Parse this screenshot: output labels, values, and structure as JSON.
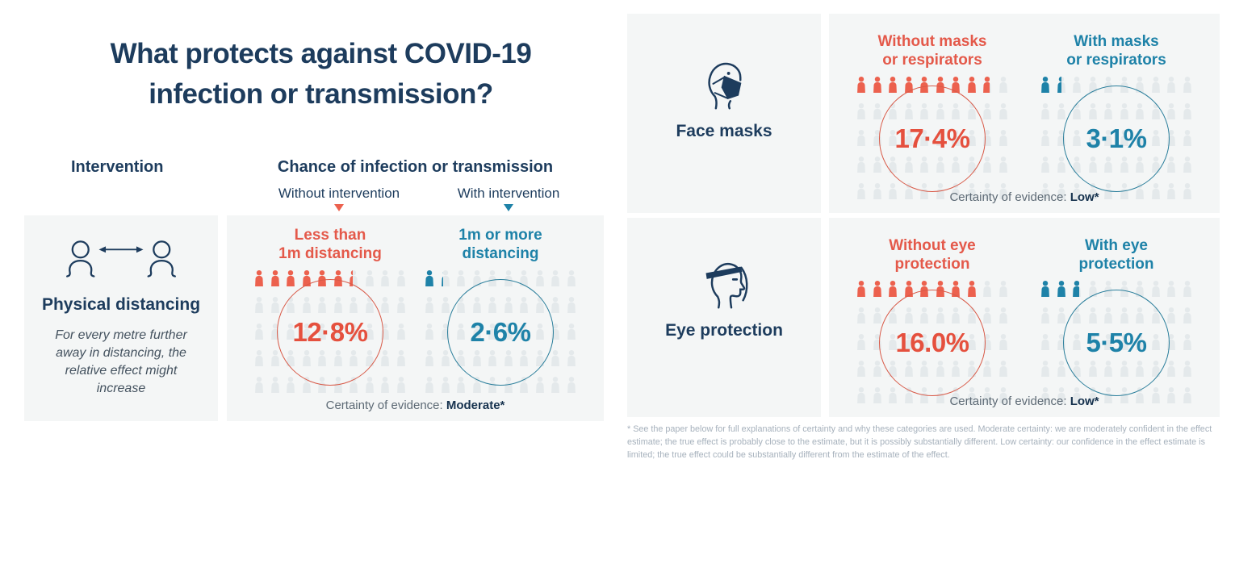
{
  "header": {
    "title": "What protects against COVID-19\ninfection or transmission?",
    "intervention_label": "Intervention",
    "chance_label": "Chance of infection or transmission",
    "without_label": "Without intervention",
    "with_label": "With intervention"
  },
  "colors": {
    "navy": "#1d3c5d",
    "red": "#ec614e",
    "teal": "#1e82a8",
    "gray_icon": "#e4e9eb",
    "panel_bg": "#f4f6f6"
  },
  "panels": {
    "physical": {
      "name": "Physical distancing",
      "note": "For every metre further away in distancing, the relative effect might increase",
      "without": {
        "label": "Less than\n1m distancing",
        "pct_display": "12·8%",
        "value": 12.8
      },
      "with": {
        "label": "1m or more\ndistancing",
        "pct_display": "2·6%",
        "value": 2.6
      },
      "certainty_label": "Certainty of evidence: ",
      "certainty_value": "Moderate*"
    },
    "masks": {
      "name": "Face masks",
      "without": {
        "label": "Without masks\nor respirators",
        "pct_display": "17·4%",
        "value": 17.4
      },
      "with": {
        "label": "With masks\nor respirators",
        "pct_display": "3·1%",
        "value": 3.1
      },
      "certainty_label": "Certainty of evidence: ",
      "certainty_value": "Low*"
    },
    "eye": {
      "name": "Eye protection",
      "without": {
        "label": "Without eye\nprotection",
        "pct_display": "16.0%",
        "value": 16.0
      },
      "with": {
        "label": "With eye\nprotection",
        "pct_display": "5·5%",
        "value": 5.5
      },
      "certainty_label": "Certainty of evidence: ",
      "certainty_value": "Low*"
    }
  },
  "footnote": {
    "text": "* See the paper below for full explanations of certainty and why these categories are used. Moderate certainty: we are moderately confident in the effect estimate; the true effect is probably close to the estimate, but it is possibly substantially different. Low certainty: our confidence in the effect estimate is limited; the true effect could be substantially different from the estimate of the effect."
  },
  "chart_data": {
    "type": "pictogram",
    "title": "What protects against COVID-19 infection or transmission?",
    "description": "Chance of infection or transmission without vs with each intervention, shown as coloured people out of 50 icons",
    "icon_grid": {
      "rows": 5,
      "cols": 10,
      "icons_total": 50,
      "pct_per_icon": 2
    },
    "series": [
      {
        "intervention": "Physical distancing",
        "without_label": "Less than 1m distancing",
        "without_pct": 12.8,
        "with_label": "1m or more distancing",
        "with_pct": 2.6,
        "certainty": "Moderate",
        "note": "For every metre further away in distancing, the relative effect might increase"
      },
      {
        "intervention": "Face masks",
        "without_label": "Without masks or respirators",
        "without_pct": 17.4,
        "with_label": "With masks or respirators",
        "with_pct": 3.1,
        "certainty": "Low"
      },
      {
        "intervention": "Eye protection",
        "without_label": "Without eye protection",
        "without_pct": 16.0,
        "with_label": "With eye protection",
        "with_pct": 5.5,
        "certainty": "Low"
      }
    ],
    "legend": {
      "without_color": "#ec614e",
      "with_color": "#1e82a8",
      "unaffected_color": "#e4e9eb"
    }
  }
}
